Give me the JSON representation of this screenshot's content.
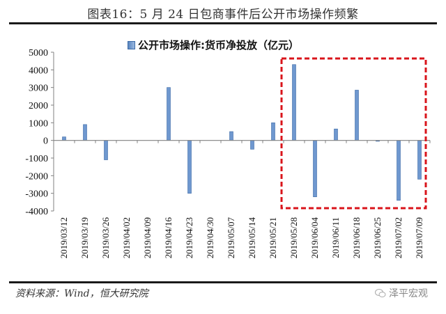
{
  "header": {
    "figure_title": "图表16：5 月 24 日包商事件后公开市场操作频繁"
  },
  "legend": {
    "label": "公开市场操作:货币净投放（亿元）",
    "swatch_color": "#6f98cf"
  },
  "footer": {
    "source": "资料来源：Wind，恒大研究院",
    "watermark": "泽平宏观"
  },
  "colors": {
    "bar": "#6f98cf",
    "bar_edge": "#3c6aa6",
    "axis": "#808080",
    "highlight_box": "#d9141b"
  },
  "chart_data": {
    "type": "bar",
    "title": "公开市场操作:货币净投放（亿元）",
    "xlabel": "",
    "ylabel": "",
    "ylim": [
      -4000,
      5000
    ],
    "yticks": [
      5000,
      4000,
      3000,
      2000,
      1000,
      0,
      -1000,
      -2000,
      -3000,
      -4000
    ],
    "grid": false,
    "legend_position": "top",
    "categories": [
      "2019/03/12",
      "2019/03/19",
      "2019/03/26",
      "2019/04/02",
      "2019/04/09",
      "2019/04/16",
      "2019/04/23",
      "2019/04/30",
      "2019/05/07",
      "2019/05/14",
      "2019/05/21",
      "2019/05/28",
      "2019/06/04",
      "2019/06/11",
      "2019/06/18",
      "2019/06/25",
      "2019/07/02",
      "2019/07/09"
    ],
    "series": [
      {
        "name": "公开市场操作:货币净投放（亿元）",
        "values": [
          200,
          900,
          -1100,
          0,
          0,
          3000,
          -3000,
          0,
          500,
          -500,
          1000,
          4300,
          -3200,
          650,
          2850,
          -50,
          -3400,
          -2200
        ]
      }
    ],
    "annotations": [
      {
        "type": "dashed-rectangle",
        "color": "#d9141b",
        "from_category": "2019/05/28",
        "to_category": "2019/07/09",
        "note": "5月24日包商事件后区间"
      }
    ]
  }
}
